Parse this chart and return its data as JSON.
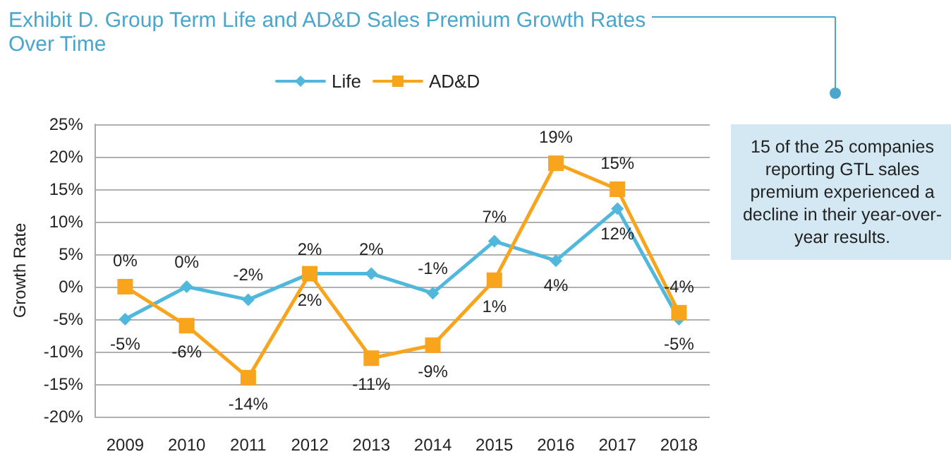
{
  "chart_data": {
    "type": "line",
    "title": "Exhibit D. Group Term Life and AD&D Sales Premium Growth Rates Over Time",
    "ylabel": "Growth Rate",
    "categories": [
      "2009",
      "2010",
      "2011",
      "2012",
      "2013",
      "2014",
      "2015",
      "2016",
      "2017",
      "2018"
    ],
    "series": [
      {
        "name": "Life",
        "color": "#4fb8dc",
        "marker": "diamond",
        "values": [
          -5,
          0,
          -2,
          2,
          2,
          -1,
          7,
          4,
          12,
          -5
        ],
        "value_labels": [
          "-5%",
          "0%",
          "-2%",
          "2%",
          "2%",
          "-1%",
          "7%",
          "4%",
          "12%",
          "-5%"
        ]
      },
      {
        "name": "AD&D",
        "color": "#f8a51d",
        "marker": "square",
        "values": [
          0,
          -6,
          -14,
          2,
          -11,
          -9,
          1,
          19,
          15,
          -4
        ],
        "value_labels": [
          "0%",
          "-6%",
          "-14%",
          "2%",
          "-11%",
          "-9%",
          "1%",
          "19%",
          "15%",
          "-4%"
        ]
      }
    ],
    "ylim": [
      -20,
      25
    ],
    "yticks": [
      {
        "value": -20,
        "label": "-20%"
      },
      {
        "value": -15,
        "label": "-15%"
      },
      {
        "value": -10,
        "label": "-10%"
      },
      {
        "value": -5,
        "label": "-5%"
      },
      {
        "value": 0,
        "label": "0%"
      },
      {
        "value": 5,
        "label": "5%"
      },
      {
        "value": 10,
        "label": "10%"
      },
      {
        "value": 15,
        "label": "15%"
      },
      {
        "value": 20,
        "label": "20%"
      },
      {
        "value": 25,
        "label": "25%"
      }
    ],
    "grid": "y",
    "legend": "top",
    "annotations": [
      "15 of the 25 companies reporting GTL sales premium experienced a decline in their year-over-year results."
    ]
  }
}
